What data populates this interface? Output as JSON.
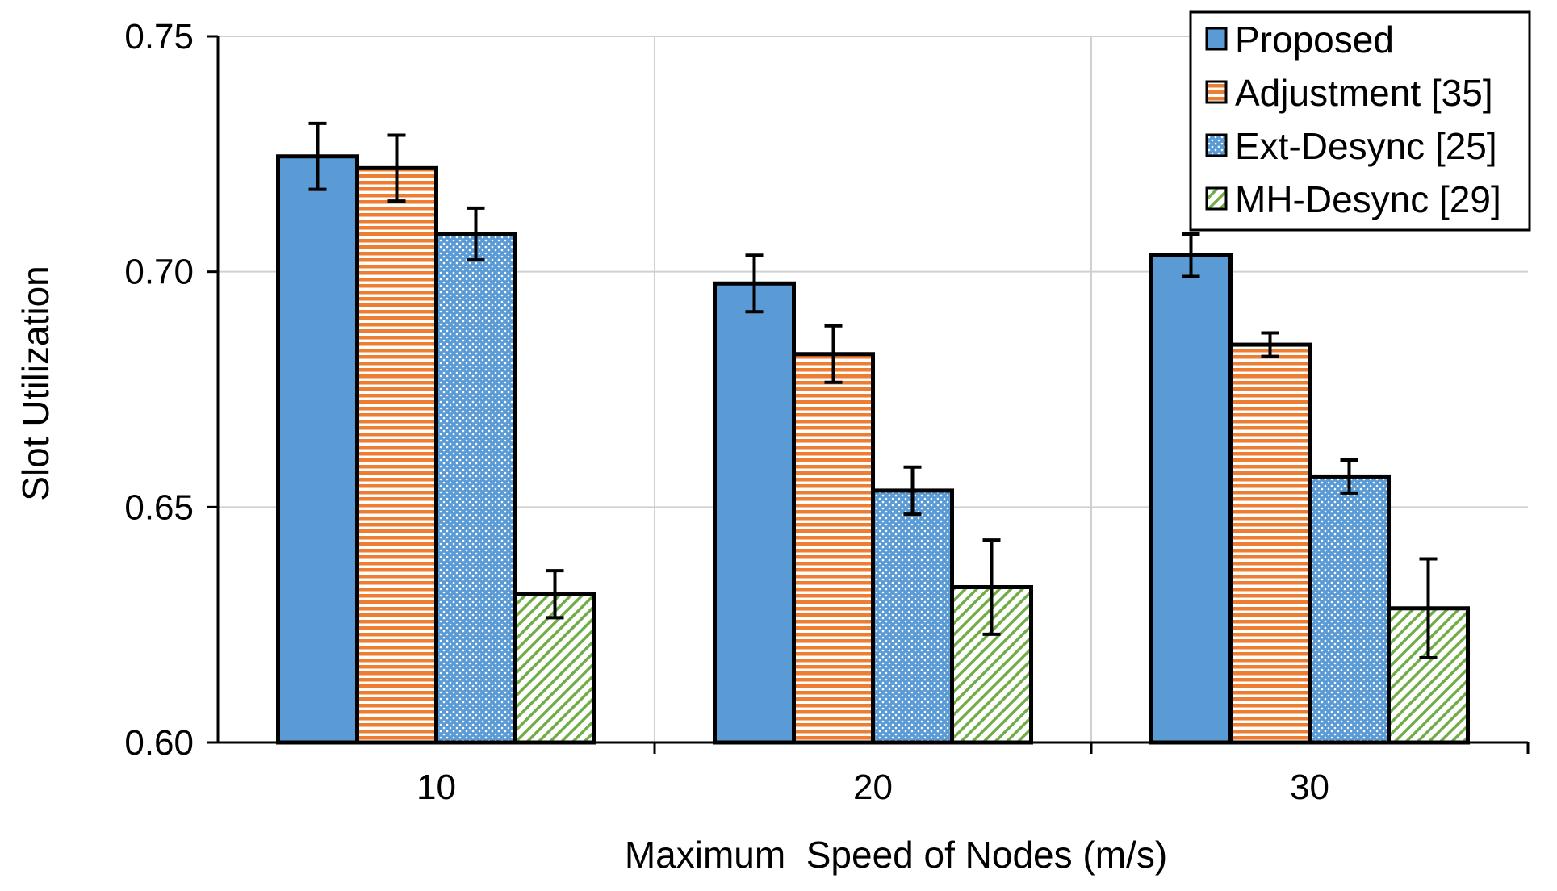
{
  "chart_data": {
    "type": "bar",
    "title": "",
    "xlabel": "Maximum  Speed of Nodes (m/s)",
    "ylabel": "Slot Utilization",
    "categories": [
      "10",
      "20",
      "30"
    ],
    "ylim": [
      0.6,
      0.75
    ],
    "yticks": [
      "0.60",
      "0.65",
      "0.70",
      "0.75"
    ],
    "grid": true,
    "legend_position": "top-right",
    "series": [
      {
        "name": "Proposed",
        "pattern": "solid",
        "color": "#5b9bd5",
        "values": [
          0.7245,
          0.6975,
          0.7035
        ],
        "errors": [
          0.007,
          0.006,
          0.0045
        ]
      },
      {
        "name": "Adjustment [35]",
        "pattern": "horizontal-stripes",
        "color": "#ed7d31",
        "values": [
          0.722,
          0.6825,
          0.6845
        ],
        "errors": [
          0.007,
          0.006,
          0.0025
        ]
      },
      {
        "name": "Ext-Desync [25]",
        "pattern": "dotted",
        "color": "#5b9bd5",
        "values": [
          0.708,
          0.6535,
          0.6565
        ],
        "errors": [
          0.0055,
          0.005,
          0.0035
        ]
      },
      {
        "name": "MH-Desync [29]",
        "pattern": "diagonal-hatch",
        "color": "#70ad47",
        "values": [
          0.6315,
          0.633,
          0.6285
        ],
        "errors": [
          0.005,
          0.01,
          0.0105
        ]
      }
    ]
  }
}
